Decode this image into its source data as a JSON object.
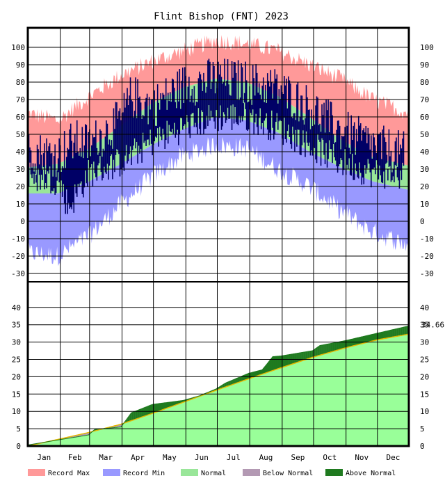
{
  "chart_data": {
    "type": "area",
    "title": "Flint Bishop (FNT) 2023",
    "months": [
      "Jan",
      "Feb",
      "Mar",
      "Apr",
      "May",
      "Jun",
      "Jul",
      "Aug",
      "Sep",
      "Oct",
      "Nov",
      "Dec"
    ],
    "temperature": {
      "yticks": [
        100,
        90,
        80,
        70,
        60,
        50,
        40,
        30,
        20,
        10,
        0,
        -10,
        -20,
        -30
      ],
      "ylim": [
        -30,
        110
      ],
      "record_max_profile": [
        [
          1,
          62
        ],
        [
          30,
          58
        ],
        [
          60,
          72
        ],
        [
          90,
          84
        ],
        [
          120,
          92
        ],
        [
          150,
          98
        ],
        [
          180,
          104
        ],
        [
          210,
          102
        ],
        [
          240,
          98
        ],
        [
          270,
          90
        ],
        [
          300,
          82
        ],
        [
          330,
          70
        ],
        [
          365,
          62
        ]
      ],
      "normal_high_profile": [
        [
          1,
          31
        ],
        [
          30,
          33
        ],
        [
          60,
          42
        ],
        [
          90,
          55
        ],
        [
          120,
          68
        ],
        [
          150,
          77
        ],
        [
          180,
          82
        ],
        [
          210,
          80
        ],
        [
          240,
          72
        ],
        [
          270,
          60
        ],
        [
          300,
          47
        ],
        [
          330,
          37
        ],
        [
          365,
          32
        ]
      ],
      "normal_low_profile": [
        [
          1,
          16
        ],
        [
          30,
          16
        ],
        [
          60,
          23
        ],
        [
          90,
          33
        ],
        [
          120,
          44
        ],
        [
          150,
          53
        ],
        [
          180,
          60
        ],
        [
          210,
          58
        ],
        [
          240,
          51
        ],
        [
          270,
          40
        ],
        [
          300,
          31
        ],
        [
          330,
          23
        ],
        [
          365,
          18
        ]
      ],
      "record_min_profile": [
        [
          1,
          -18
        ],
        [
          30,
          -20
        ],
        [
          60,
          -8
        ],
        [
          90,
          10
        ],
        [
          120,
          26
        ],
        [
          150,
          38
        ],
        [
          180,
          44
        ],
        [
          210,
          42
        ],
        [
          240,
          30
        ],
        [
          270,
          20
        ],
        [
          300,
          6
        ],
        [
          330,
          -6
        ],
        [
          365,
          -14
        ]
      ],
      "observed_high_profile": [
        [
          1,
          40
        ],
        [
          30,
          38
        ],
        [
          45,
          46
        ],
        [
          60,
          44
        ],
        [
          90,
          58
        ],
        [
          100,
          72
        ],
        [
          120,
          66
        ],
        [
          150,
          78
        ],
        [
          180,
          82
        ],
        [
          210,
          80
        ],
        [
          240,
          76
        ],
        [
          270,
          66
        ],
        [
          300,
          52
        ],
        [
          330,
          44
        ],
        [
          365,
          38
        ]
      ],
      "observed_low_profile": [
        [
          1,
          26
        ],
        [
          30,
          24
        ],
        [
          40,
          8
        ],
        [
          60,
          28
        ],
        [
          90,
          34
        ],
        [
          120,
          46
        ],
        [
          150,
          54
        ],
        [
          180,
          60
        ],
        [
          210,
          60
        ],
        [
          240,
          54
        ],
        [
          270,
          44
        ],
        [
          300,
          34
        ],
        [
          330,
          28
        ],
        [
          365,
          26
        ]
      ],
      "data_end_day": 360
    },
    "precipitation": {
      "yticks": [
        40,
        35,
        30,
        25,
        20,
        15,
        10,
        5,
        0
      ],
      "ylim": [
        0,
        40
      ],
      "total_label": "34.66",
      "normal_cumulative": [
        [
          1,
          0
        ],
        [
          31,
          2.0
        ],
        [
          59,
          3.9
        ],
        [
          90,
          6.3
        ],
        [
          120,
          9.4
        ],
        [
          151,
          12.8
        ],
        [
          181,
          16.1
        ],
        [
          212,
          19.4
        ],
        [
          243,
          22.6
        ],
        [
          273,
          25.6
        ],
        [
          304,
          28.3
        ],
        [
          334,
          30.6
        ],
        [
          365,
          32.3
        ]
      ],
      "observed_cumulative": [
        [
          1,
          0.3
        ],
        [
          31,
          1.8
        ],
        [
          59,
          3.2
        ],
        [
          65,
          4.8
        ],
        [
          90,
          5.5
        ],
        [
          100,
          9.6
        ],
        [
          120,
          12.0
        ],
        [
          150,
          13.2
        ],
        [
          165,
          14.5
        ],
        [
          181,
          16.5
        ],
        [
          190,
          18.2
        ],
        [
          212,
          21.0
        ],
        [
          225,
          22.0
        ],
        [
          235,
          25.8
        ],
        [
          243,
          26.0
        ],
        [
          273,
          27.5
        ],
        [
          280,
          29.0
        ],
        [
          304,
          30.4
        ],
        [
          334,
          32.5
        ],
        [
          365,
          34.66
        ]
      ]
    },
    "legend": [
      {
        "label": "Record Max",
        "color": "#ff9999"
      },
      {
        "label": "Record Min",
        "color": "#9999ff"
      },
      {
        "label": "Normal",
        "color": "#99e699"
      },
      {
        "label": "Below Normal",
        "color": "#b399b3"
      },
      {
        "label": "Above Normal",
        "color": "#1f7a1f"
      }
    ],
    "colors": {
      "record_max": "#ff9999",
      "record_min": "#9999ff",
      "normal": "#99e699",
      "observed": "#000066",
      "precip_normal_fill": "#99ff99",
      "above_normal": "#1f7a1f",
      "below_normal": "#b399b3",
      "normal_line": "#e6b800"
    }
  }
}
